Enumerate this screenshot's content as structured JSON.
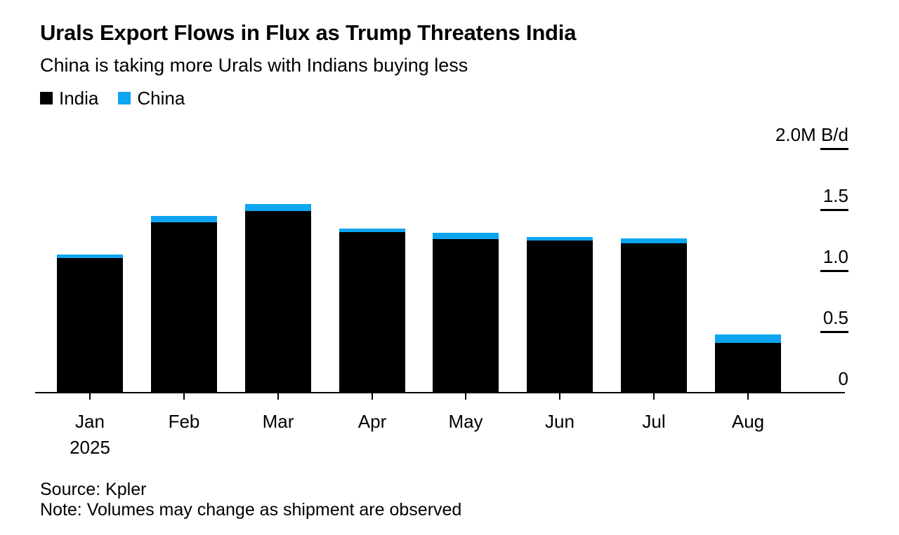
{
  "header": {
    "title": "Urals Export Flows in Flux as Trump Threatens India",
    "subtitle": "China is taking more Urals with Indians buying less"
  },
  "legend": [
    {
      "name": "india-swatch",
      "label": "India",
      "color": "#000000"
    },
    {
      "name": "china-swatch",
      "label": "China",
      "color": "#0da5f0"
    }
  ],
  "chart_data": {
    "type": "bar",
    "stacked": true,
    "title": "Urals Export Flows in Flux as Trump Threatens India",
    "subtitle": "China is taking more Urals with Indians buying less",
    "unit": "M B/d",
    "categories": [
      "Jan",
      "Feb",
      "Mar",
      "Apr",
      "May",
      "Jun",
      "Jul",
      "Aug"
    ],
    "x_sublabels": [
      "2025",
      "",
      "",
      "",
      "",
      "",
      "",
      ""
    ],
    "series": [
      {
        "name": "India",
        "color": "#000000",
        "values": [
          1.1,
          1.39,
          1.48,
          1.31,
          1.25,
          1.24,
          1.22,
          0.4
        ]
      },
      {
        "name": "China",
        "color": "#0da5f0",
        "values": [
          0.03,
          0.05,
          0.06,
          0.03,
          0.05,
          0.03,
          0.04,
          0.07
        ]
      }
    ],
    "ylim": [
      0,
      2.0
    ],
    "yticks": [
      {
        "value": 0.0,
        "label": "0"
      },
      {
        "value": 0.5,
        "label": "0.5"
      },
      {
        "value": 1.0,
        "label": "1.0"
      },
      {
        "value": 1.5,
        "label": "1.5"
      },
      {
        "value": 2.0,
        "label": "2.0M B/d"
      }
    ],
    "grid": false,
    "legend_position": "top-left"
  },
  "footer": {
    "source": "Source: Kpler",
    "note": "Note: Volumes may change as shipment are observed"
  }
}
